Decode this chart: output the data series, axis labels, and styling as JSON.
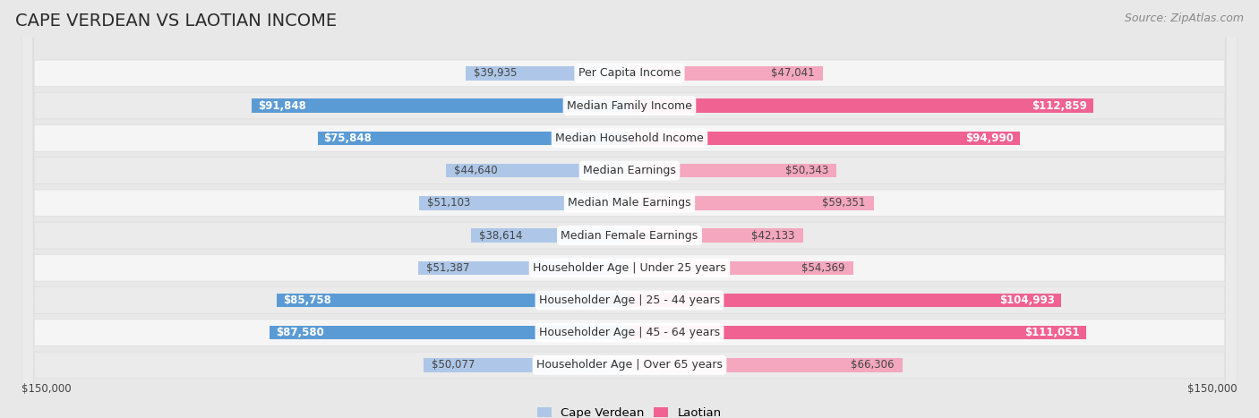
{
  "title": "CAPE VERDEAN VS LAOTIAN INCOME",
  "source": "Source: ZipAtlas.com",
  "categories": [
    "Per Capita Income",
    "Median Family Income",
    "Median Household Income",
    "Median Earnings",
    "Median Male Earnings",
    "Median Female Earnings",
    "Householder Age | Under 25 years",
    "Householder Age | 25 - 44 years",
    "Householder Age | 45 - 64 years",
    "Householder Age | Over 65 years"
  ],
  "cape_verdean": [
    39935,
    91848,
    75848,
    44640,
    51103,
    38614,
    51387,
    85758,
    87580,
    50077
  ],
  "laotian": [
    47041,
    112859,
    94990,
    50343,
    59351,
    42133,
    54369,
    104993,
    111051,
    66306
  ],
  "max_val": 150000,
  "cv_strong_color": "#5b9bd5",
  "cv_light_color": "#aec7e8",
  "la_strong_color": "#f06292",
  "la_light_color": "#f4a7bf",
  "bg_color": "#e8e8e8",
  "row_bg_color": "#f5f5f5",
  "row_alt_color": "#ebebeb",
  "strong_threshold": 75000,
  "title_fontsize": 14,
  "source_fontsize": 9,
  "cat_fontsize": 9,
  "val_fontsize": 8.5
}
